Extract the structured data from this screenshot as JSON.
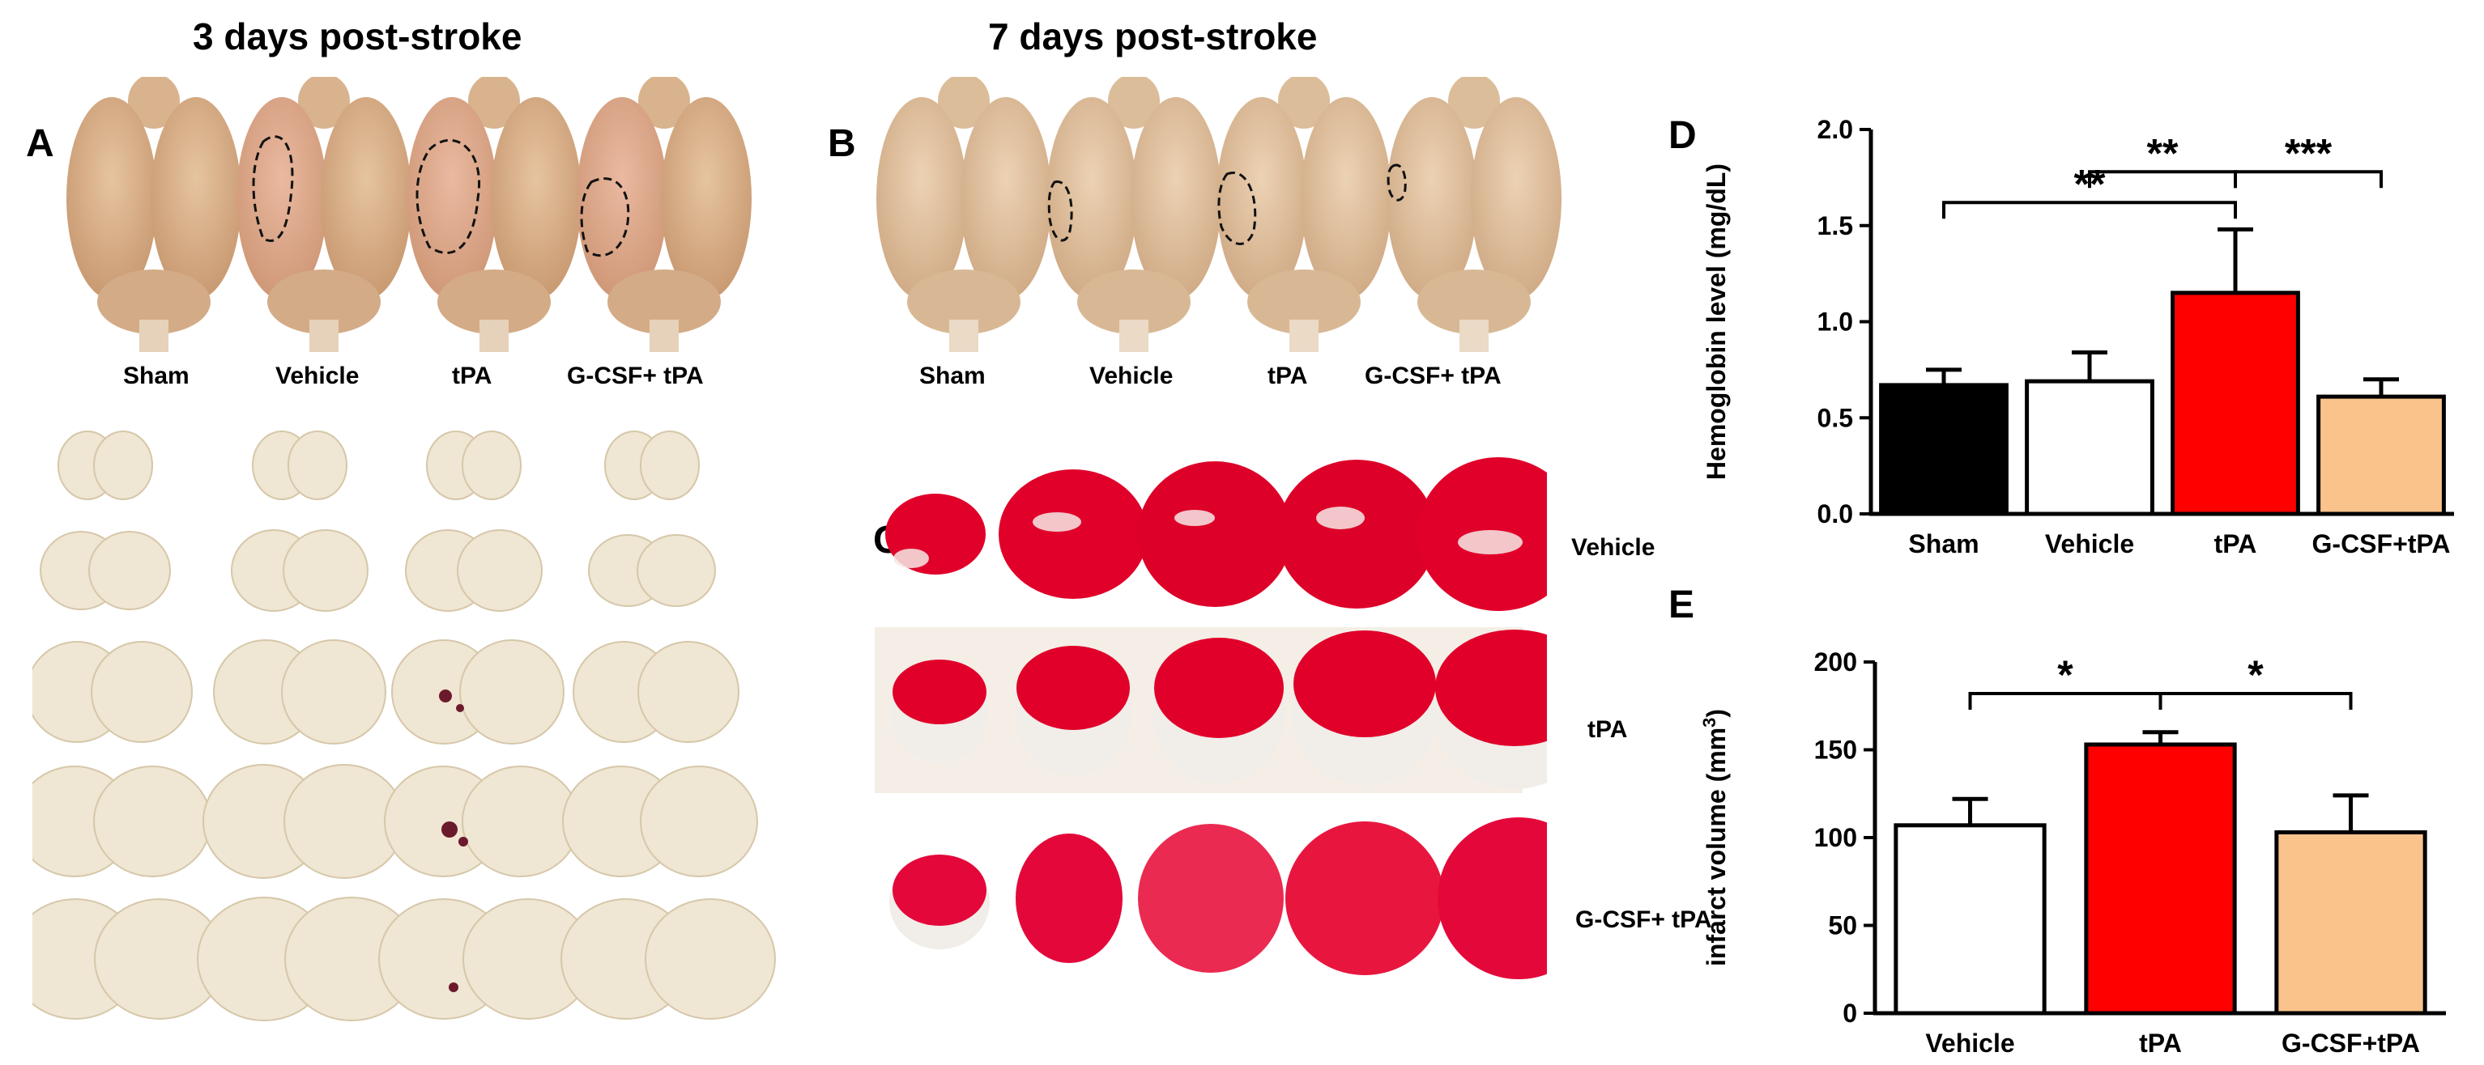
{
  "figure": {
    "title_a": "3 days post-stroke",
    "title_b": "7 days post-stroke",
    "panels": {
      "a": "A",
      "b": "B",
      "c": "C",
      "d": "D",
      "e": "E"
    },
    "brain_labels_a": [
      "Sham",
      "Vehicle",
      "tPA",
      "G-CSF+ tPA"
    ],
    "brain_labels_b": [
      "Sham",
      "Vehicle",
      "tPA",
      "G-CSF+ tPA"
    ],
    "c_rows": [
      "Vehicle",
      "tPA",
      "G-CSF+ tPA"
    ],
    "colors": {
      "brain": "#d9b28e",
      "brain_shadow": "#c8976f",
      "slice_white": "#efe6d3",
      "slice_shadow": "#d8cbb0",
      "ttc_red": "#e0002a",
      "ttc_dark": "#b0001c",
      "ttc_pale": "#f3f0ea",
      "bleed": "#6b1a2b",
      "sham": "#000000",
      "vehicle": "#ffffff",
      "tpa": "#ff0000",
      "gcsf": "#f9c38b"
    }
  },
  "chart_data": [
    {
      "panel": "D",
      "type": "bar",
      "categories": [
        "Sham",
        "Vehicle",
        "tPA",
        "G-CSF+tPA"
      ],
      "values": [
        0.67,
        0.69,
        1.15,
        0.61
      ],
      "errors": [
        0.08,
        0.15,
        0.33,
        0.09
      ],
      "colors": [
        "#000000",
        "#ffffff",
        "#ff0000",
        "#f9c38b"
      ],
      "ylabel": "Hemoglobin level  (mg/dL)",
      "ylim": [
        0,
        2.0
      ],
      "yticks": [
        "0.0",
        "0.5",
        "1.0",
        "1.5",
        "2.0"
      ],
      "ytick_values": [
        0,
        0.5,
        1.0,
        1.5,
        2.0
      ],
      "significance": [
        {
          "from": 0,
          "to": 2,
          "label": "**",
          "level": 1.62
        },
        {
          "from": 1,
          "to": 2,
          "label": "**",
          "level": 1.78
        },
        {
          "from": 2,
          "to": 3,
          "label": "***",
          "level": 1.78
        }
      ]
    },
    {
      "panel": "E",
      "type": "bar",
      "categories": [
        "Vehicle",
        "tPA",
        "G-CSF+tPA"
      ],
      "values": [
        107,
        153,
        103
      ],
      "errors": [
        15,
        7,
        21
      ],
      "colors": [
        "#ffffff",
        "#ff0000",
        "#f9c38b"
      ],
      "ylabel": "infarct volume (mm",
      "ylabel_sup": "3",
      "ylabel_end": ")",
      "ylim": [
        0,
        200
      ],
      "yticks": [
        "0",
        "50",
        "100",
        "150",
        "200"
      ],
      "ytick_values": [
        0,
        50,
        100,
        150,
        200
      ],
      "significance": [
        {
          "from": 0,
          "to": 1,
          "label": "*",
          "level": 182
        },
        {
          "from": 1,
          "to": 2,
          "label": "*",
          "level": 182
        }
      ]
    }
  ]
}
